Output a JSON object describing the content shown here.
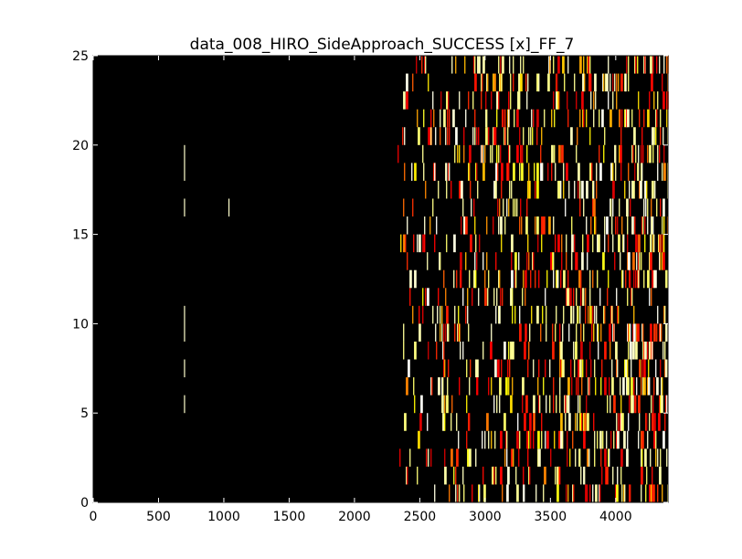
{
  "chart_data": {
    "type": "heatmap",
    "title": "data_008_HIRO_SideApproach_SUCCESS [x]_FF_7",
    "xlabel": "",
    "ylabel": "",
    "xlim": [
      0,
      4400
    ],
    "ylim": [
      0,
      25
    ],
    "x_ticks": [
      0,
      500,
      1000,
      1500,
      2000,
      2500,
      3000,
      3500,
      4000
    ],
    "y_ticks": [
      0,
      5,
      10,
      15,
      20,
      25
    ],
    "x_tick_labels": [
      "0",
      "500",
      "1000",
      "1500",
      "2000",
      "2500",
      "3000",
      "3500",
      "4000"
    ],
    "y_tick_labels": [
      "0",
      "5",
      "10",
      "15",
      "20",
      "25"
    ],
    "colormap": "hot",
    "background_color": "#000000",
    "grid": false,
    "early_marks": [
      {
        "x": 695,
        "y0": 18,
        "y1": 20
      },
      {
        "x": 695,
        "y0": 16,
        "y1": 17
      },
      {
        "x": 695,
        "y0": 9,
        "y1": 11
      },
      {
        "x": 695,
        "y0": 7,
        "y1": 8
      },
      {
        "x": 695,
        "y0": 5,
        "y1": 6
      },
      {
        "x": 1035,
        "y0": 16,
        "y1": 17
      }
    ],
    "dense_region": {
      "x_start": 2330,
      "x_end": 4400,
      "density_start": 0.08,
      "density_end": 0.38
    }
  }
}
